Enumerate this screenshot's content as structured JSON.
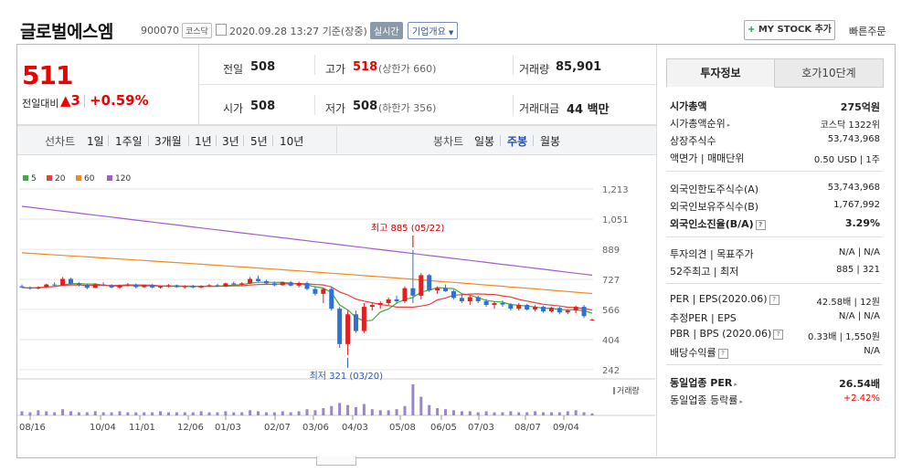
{
  "header": {
    "company": "글로벌에스엠",
    "code": "900070",
    "market": "코스닥",
    "datetime": "2020.09.28 13:27",
    "basis": "기준(장중)",
    "realtime": "실시간",
    "overview": "기업개요",
    "my_stock": "MY STOCK 추가",
    "quick_order": "빠른주문"
  },
  "price": {
    "current": "511",
    "change_label": "전일대비",
    "change": "▲3",
    "change_pct": "+0.59%"
  },
  "quote": {
    "prev_label": "전일",
    "prev": "508",
    "high_label": "고가",
    "high": "518",
    "upper_limit": "(상한가 660)",
    "volume_label": "거래량",
    "volume": "85,901",
    "open_label": "시가",
    "open": "508",
    "low_label": "저가",
    "low": "508",
    "lower_limit": "(하한가 356)",
    "amount_label": "거래대금",
    "amount": "44 백만"
  },
  "period_bar": {
    "line_chart": "선차트",
    "ranges": [
      "1일",
      "1주일",
      "3개월",
      "1년",
      "3년",
      "5년",
      "10년"
    ],
    "candle_chart": "봉차트",
    "candles": [
      "일봉",
      "주봉",
      "월봉"
    ],
    "active_candle": "주봉"
  },
  "chart_data": {
    "type": "candlestick",
    "legend": [
      {
        "name": "5",
        "color": "#3cae3c"
      },
      {
        "name": "20",
        "color": "#e84040"
      },
      {
        "name": "60",
        "color": "#f28a1c"
      },
      {
        "name": "120",
        "color": "#a05ec8"
      }
    ],
    "y_ticks": [
      "1,213",
      "1,051",
      "889",
      "727",
      "566",
      "404",
      "242"
    ],
    "y_tick_values": [
      1213,
      1051,
      889,
      727,
      566,
      404,
      242
    ],
    "x_ticks": [
      "08/16",
      "10/04",
      "11/01",
      "12/06",
      "01/03",
      "02/07",
      "03/06",
      "04/03",
      "05/08",
      "06/05",
      "07/03",
      "08/07",
      "09/04"
    ],
    "volume_label": "거래량",
    "high_note": "최고 885 (05/22)",
    "low_note": "최저 321 (03/20)",
    "up_color": "#e02020",
    "down_color": "#2f6fd6",
    "candles": [
      [
        690,
        700,
        680,
        684
      ],
      [
        684,
        690,
        672,
        678
      ],
      [
        678,
        690,
        674,
        686
      ],
      [
        686,
        704,
        682,
        700
      ],
      [
        700,
        712,
        692,
        696
      ],
      [
        696,
        740,
        694,
        730
      ],
      [
        730,
        736,
        700,
        704
      ],
      [
        704,
        712,
        688,
        698
      ],
      [
        698,
        706,
        674,
        682
      ],
      [
        682,
        706,
        680,
        700
      ],
      [
        700,
        712,
        690,
        696
      ],
      [
        696,
        702,
        680,
        684
      ],
      [
        684,
        700,
        676,
        694
      ],
      [
        694,
        708,
        690,
        700
      ],
      [
        700,
        706,
        678,
        686
      ],
      [
        686,
        700,
        682,
        696
      ],
      [
        696,
        702,
        680,
        684
      ],
      [
        684,
        694,
        678,
        690
      ],
      [
        690,
        702,
        684,
        696
      ],
      [
        696,
        700,
        682,
        686
      ],
      [
        686,
        696,
        678,
        690
      ],
      [
        690,
        698,
        680,
        684
      ],
      [
        684,
        696,
        680,
        692
      ],
      [
        692,
        702,
        686,
        696
      ],
      [
        696,
        704,
        688,
        690
      ],
      [
        690,
        710,
        686,
        706
      ],
      [
        706,
        716,
        696,
        700
      ],
      [
        700,
        712,
        694,
        706
      ],
      [
        706,
        740,
        702,
        730
      ],
      [
        730,
        748,
        714,
        718
      ],
      [
        718,
        726,
        700,
        706
      ],
      [
        706,
        716,
        690,
        696
      ],
      [
        696,
        716,
        694,
        712
      ],
      [
        712,
        718,
        690,
        694
      ],
      [
        694,
        716,
        684,
        708
      ],
      [
        708,
        716,
        670,
        676
      ],
      [
        676,
        690,
        640,
        650
      ],
      [
        650,
        680,
        600,
        676
      ],
      [
        676,
        690,
        560,
        570
      ],
      [
        570,
        580,
        360,
        380
      ],
      [
        380,
        560,
        321,
        540
      ],
      [
        540,
        560,
        440,
        450
      ],
      [
        450,
        600,
        440,
        580
      ],
      [
        580,
        600,
        560,
        590
      ],
      [
        590,
        610,
        570,
        600
      ],
      [
        600,
        630,
        590,
        620
      ],
      [
        620,
        640,
        600,
        610
      ],
      [
        610,
        690,
        600,
        680
      ],
      [
        680,
        885,
        600,
        640
      ],
      [
        640,
        760,
        620,
        750
      ],
      [
        750,
        756,
        660,
        668
      ],
      [
        668,
        690,
        650,
        680
      ],
      [
        680,
        700,
        660,
        664
      ],
      [
        664,
        672,
        620,
        628
      ],
      [
        628,
        650,
        600,
        610
      ],
      [
        610,
        640,
        590,
        632
      ],
      [
        632,
        640,
        600,
        610
      ],
      [
        610,
        622,
        580,
        590
      ],
      [
        590,
        610,
        570,
        600
      ],
      [
        600,
        614,
        580,
        592
      ],
      [
        592,
        600,
        560,
        570
      ],
      [
        570,
        600,
        560,
        590
      ],
      [
        590,
        596,
        560,
        566
      ],
      [
        566,
        590,
        556,
        580
      ],
      [
        580,
        586,
        548,
        556
      ],
      [
        556,
        580,
        550,
        574
      ],
      [
        574,
        580,
        540,
        550
      ],
      [
        550,
        566,
        540,
        560
      ],
      [
        560,
        586,
        546,
        580
      ],
      [
        580,
        590,
        520,
        530
      ],
      [
        508,
        518,
        508,
        511
      ]
    ],
    "volume": [
      4,
      3,
      5,
      4,
      3,
      6,
      4,
      3,
      3,
      4,
      3,
      3,
      4,
      3,
      3,
      3,
      3,
      4,
      3,
      3,
      3,
      3,
      4,
      3,
      3,
      4,
      3,
      3,
      5,
      4,
      3,
      3,
      4,
      3,
      4,
      6,
      5,
      7,
      9,
      12,
      10,
      8,
      11,
      6,
      5,
      5,
      6,
      9,
      30,
      18,
      10,
      7,
      6,
      5,
      4,
      4,
      3,
      4,
      3,
      3,
      4,
      3,
      3,
      4,
      3,
      3,
      3,
      4,
      5,
      3,
      2
    ]
  },
  "right_panel": {
    "tabs": [
      "투자정보",
      "호가10단계"
    ],
    "rows1": [
      {
        "label": "시가총액",
        "value": "275억원",
        "bold": true
      },
      {
        "label": "시가총액순위",
        "value": "코스닥 1322위"
      },
      {
        "label": "상장주식수",
        "value": "53,743,968"
      },
      {
        "label": "액면가 | 매매단위",
        "value": "0.50 USD | 1주"
      }
    ],
    "rows2": [
      {
        "label": "외국인한도주식수(A)",
        "value": "53,743,968"
      },
      {
        "label": "외국인보유주식수(B)",
        "value": "1,767,992"
      },
      {
        "label": "외국인소진율(B/A)",
        "value": "3.29%",
        "bold": true
      }
    ],
    "rows3": [
      {
        "label": "투자의견 | 목표주가",
        "value": "N/A | N/A"
      },
      {
        "label": "52주최고 | 최저",
        "value": "885 | 321"
      }
    ],
    "rows4": [
      {
        "label": "PER | EPS(2020.06)",
        "value": "42.58배 | 12원"
      },
      {
        "label": "추정PER | EPS",
        "value": "N/A | N/A"
      },
      {
        "label": "PBR | BPS (2020.06)",
        "value": "0.33배 | 1,550원"
      },
      {
        "label": "배당수익률",
        "value": "N/A"
      }
    ],
    "rows5": [
      {
        "label": "동일업종 PER",
        "value": "26.54배",
        "bold": true
      },
      {
        "label": "동일업종 등락률",
        "value": "+2.42%",
        "red": true
      }
    ]
  }
}
